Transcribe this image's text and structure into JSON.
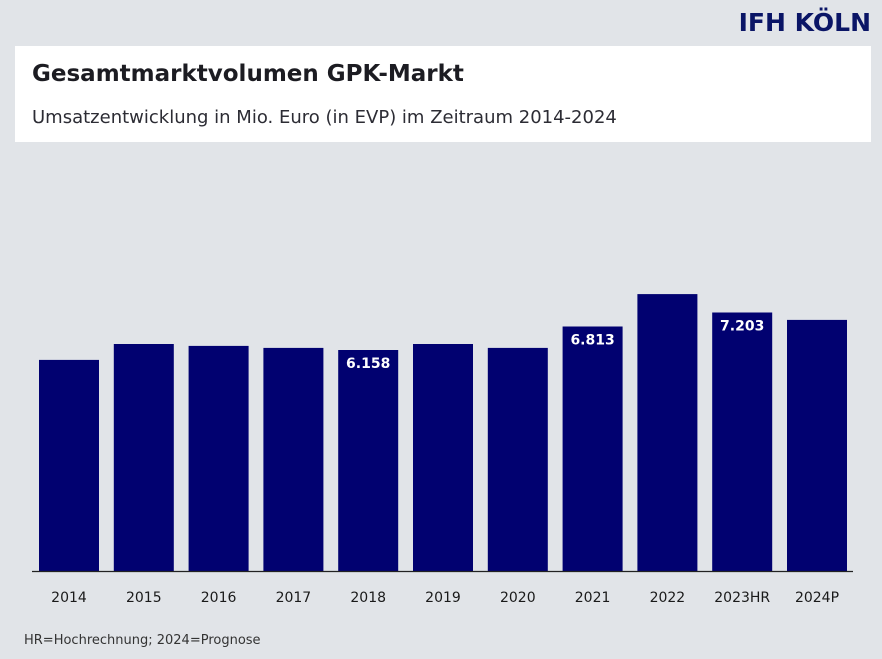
{
  "brand": {
    "logo_text": "IFH KÖLN",
    "color": "#0a1566"
  },
  "header": {
    "title": "Gesamtmarktvolumen GPK-Markt",
    "subtitle": "Umsatzentwicklung in Mio. Euro (in EVP) im Zeitraum 2014-2024"
  },
  "footnote": "HR=Hochrechnung; 2024=Prognose",
  "chart_data": {
    "type": "bar",
    "title": "Gesamtmarktvolumen GPK-Markt",
    "subtitle": "Umsatzentwicklung in Mio. Euro (in EVP) im Zeitraum 2014-2024",
    "xlabel": "",
    "ylabel": "Mio. Euro",
    "categories": [
      "2014",
      "2015",
      "2016",
      "2017",
      "2018",
      "2019",
      "2020",
      "2021",
      "2022",
      "2023HR",
      "2024P"
    ],
    "values": [
      5880,
      6325,
      6270,
      6215,
      6158,
      6325,
      6215,
      6813,
      7715,
      7203,
      6995
    ],
    "data_labels": [
      "",
      "",
      "",
      "",
      "6.158",
      "",
      "",
      "6.813",
      "",
      "7.203",
      ""
    ],
    "ylim": [
      0,
      8000
    ],
    "grid": false,
    "legend": "none",
    "bar_color": "#010170",
    "label_color": "#ffffff"
  }
}
